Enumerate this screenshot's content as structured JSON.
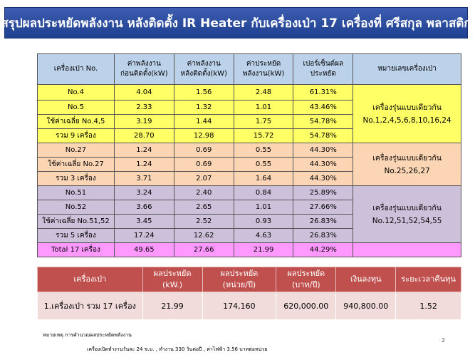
{
  "title": "สรุปผลประหยัดพลังงาน หลังติดตั้ง IR Heater กับเครื่องเป่า 17 เครื่องที่ ศรีสกุล พลาสติก",
  "table1": {
    "headers": {
      "col1": "เครื่องเป่า No.",
      "col2_l1": "ค่าพลังงาน",
      "col2_l2": "ก่อนติดตั้ง(kW)",
      "col3_l1": "ค่าพลังงาน",
      "col3_l2": "หลังติดตั้ง(kW)",
      "col4_l1": "ค่าประหยัด",
      "col4_l2": "พลังงาน(kW)",
      "col5_l1": "เปอร์เซ็นต์ผล",
      "col5_l2": "ประหยัด",
      "col6": "หมายเลขเครื่องเป่า"
    },
    "rows": [
      {
        "label": "No.4",
        "before": "4.04",
        "after": "1.56",
        "saving": "2.48",
        "percent": "61.31%"
      },
      {
        "label": "No.5",
        "before": "2.33",
        "after": "1.32",
        "saving": "1.01",
        "percent": "43.46%"
      },
      {
        "label": "ใช้ค่าเฉลี่ย No.4,5",
        "before": "3.19",
        "after": "1.44",
        "saving": "1.75",
        "percent": "54.78%"
      },
      {
        "label": "รวม 9 เครื่อง",
        "before": "28.70",
        "after": "12.98",
        "saving": "15.72",
        "percent": "54.78%"
      },
      {
        "label": "No.27",
        "before": "1.24",
        "after": "0.69",
        "saving": "0.55",
        "percent": "44.30%"
      },
      {
        "label": "ใช้ค่าเฉลี่ย No.27",
        "before": "1.24",
        "after": "0.69",
        "saving": "0.55",
        "percent": "44.30%"
      },
      {
        "label": "รวม 3 เครื่อง",
        "before": "3.71",
        "after": "2.07",
        "saving": "1.64",
        "percent": "44.30%"
      },
      {
        "label": "No.51",
        "before": "3.24",
        "after": "2.40",
        "saving": "0.84",
        "percent": "25.89%"
      },
      {
        "label": "No.52",
        "before": "3.66",
        "after": "2.65",
        "saving": "1.01",
        "percent": "27.66%"
      },
      {
        "label": "ใช้ค่าเฉลี่ย No.51,52",
        "before": "3.45",
        "after": "2.52",
        "saving": "0.93",
        "percent": "26.83%"
      },
      {
        "label": "รวม 5 เครื่อง",
        "before": "17.24",
        "after": "12.62",
        "saving": "4.63",
        "percent": "26.83%"
      },
      {
        "label": "Total 17 เครื่อง",
        "before": "49.65",
        "after": "27.66",
        "saving": "21.99",
        "percent": "44.29%"
      }
    ],
    "notes": {
      "g1_l1": "เครื่องรุ่นแบบเดียวกัน",
      "g1_l2": "No.1,2,4,5,6,8,10,16,24",
      "g2_l1": "เครื่องรุ่นแบบเดียวกัน",
      "g2_l2": "No.25,26,27",
      "g3_l1": "เครื่องรุ่นแบบเดียวกัน",
      "g3_l2": "No.12,51,52,54,55"
    }
  },
  "table2": {
    "headers": {
      "h1": "เครื่องเป่า",
      "h2_l1": "ผลประหยัด",
      "h2_l2": "(kW.)",
      "h3_l1": "ผลประหยัด",
      "h3_l2": "(หน่วย/ปี)",
      "h4_l1": "ผลประหยัด",
      "h4_l2": "(บาท/ปี)",
      "h5": "เงินลงทุน",
      "h6": "ระยะเวลาคืนทุน"
    },
    "row": {
      "c1": "1.เครื่องเป่า รวม 17 เครื่อง",
      "c2": "21.99",
      "c3": "174,160",
      "c4": "620,000.00",
      "c5": "940,800.00",
      "c6": "1.52"
    }
  },
  "footnote": {
    "line1": "หมายเหตุ การคำนวณผลประหยัดพลังงาน",
    "line2": "เครื่องเปิดทำงานวันละ  24 ช.ม. , ทำงาน 330 วันต่อปี , ค่าไฟฟ้า  3.56 บาทต่อหน่วย"
  },
  "page_number": "2"
}
